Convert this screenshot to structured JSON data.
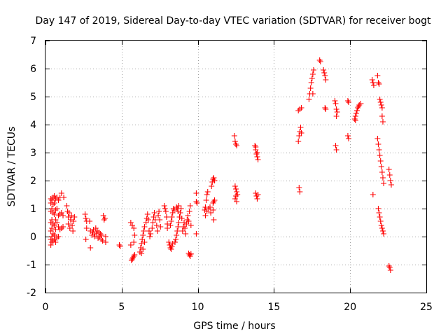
{
  "chart_data": {
    "type": "scatter",
    "title": "Day 147 of 2019, Sidereal Day-to-day VTEC variation (SDTVAR) for receiver bogt",
    "xlabel": "GPS time / hours",
    "ylabel": "SDTVAR / TECUs",
    "xlim": [
      0,
      25
    ],
    "ylim": [
      -2,
      7
    ],
    "xticks": [
      0,
      5,
      10,
      15,
      20,
      25
    ],
    "yticks": [
      -2,
      -1,
      0,
      1,
      2,
      3,
      4,
      5,
      6,
      7
    ],
    "xtick_labels": [
      "0",
      "5",
      "10",
      "15",
      "20",
      "25"
    ],
    "ytick_labels": [
      "-2",
      "-1",
      "0",
      "1",
      "2",
      "3",
      "4",
      "5",
      "6",
      "7"
    ],
    "grid": true,
    "marker": "plus",
    "color": "#ff0000",
    "series": [
      {
        "name": "SDTVAR",
        "points": [
          [
            0.35,
            -0.3
          ],
          [
            0.35,
            -0.1
          ],
          [
            0.35,
            0.2
          ],
          [
            0.35,
            0.5
          ],
          [
            0.35,
            0.9
          ],
          [
            0.35,
            1.2
          ],
          [
            0.35,
            1.35
          ],
          [
            0.42,
            1.3
          ],
          [
            0.42,
            1.0
          ],
          [
            0.42,
            0.6
          ],
          [
            0.42,
            0.3
          ],
          [
            0.42,
            0.0
          ],
          [
            0.42,
            -0.2
          ],
          [
            0.5,
            -0.15
          ],
          [
            0.5,
            0.1
          ],
          [
            0.5,
            0.45
          ],
          [
            0.5,
            0.85
          ],
          [
            0.5,
            1.15
          ],
          [
            0.5,
            1.4
          ],
          [
            0.58,
            1.45
          ],
          [
            0.58,
            1.2
          ],
          [
            0.58,
            0.8
          ],
          [
            0.58,
            0.4
          ],
          [
            0.58,
            0.05
          ],
          [
            0.58,
            -0.1
          ],
          [
            0.66,
            -0.2
          ],
          [
            0.66,
            0.25
          ],
          [
            0.66,
            0.6
          ],
          [
            0.66,
            0.95
          ],
          [
            0.66,
            1.35
          ],
          [
            0.75,
            1.4
          ],
          [
            0.75,
            1.0
          ],
          [
            0.75,
            0.5
          ],
          [
            0.75,
            0.0
          ],
          [
            0.75,
            -0.05
          ],
          [
            0.85,
            0.0
          ],
          [
            0.85,
            0.35
          ],
          [
            0.85,
            0.75
          ],
          [
            0.85,
            1.3
          ],
          [
            0.95,
            0.8
          ],
          [
            0.95,
            0.25
          ],
          [
            0.95,
            1.4
          ],
          [
            1.05,
            0.85
          ],
          [
            1.05,
            1.55
          ],
          [
            1.05,
            0.3
          ],
          [
            1.15,
            0.75
          ],
          [
            1.15,
            0.35
          ],
          [
            1.2,
            1.4
          ],
          [
            1.4,
            1.1
          ],
          [
            1.45,
            0.9
          ],
          [
            1.5,
            0.7
          ],
          [
            1.5,
            0.45
          ],
          [
            1.55,
            0.85
          ],
          [
            1.6,
            0.3
          ],
          [
            1.65,
            0.6
          ],
          [
            1.7,
            0.75
          ],
          [
            1.75,
            0.4
          ],
          [
            1.8,
            0.2
          ],
          [
            1.85,
            0.55
          ],
          [
            1.9,
            0.7
          ],
          [
            2.6,
            0.8
          ],
          [
            2.65,
            0.65
          ],
          [
            2.7,
            0.55
          ],
          [
            2.7,
            0.3
          ],
          [
            2.65,
            -0.1
          ],
          [
            2.9,
            0.55
          ],
          [
            2.95,
            0.2
          ],
          [
            2.95,
            -0.4
          ],
          [
            3.05,
            0.05
          ],
          [
            3.1,
            0.15
          ],
          [
            3.15,
            0.25
          ],
          [
            3.2,
            0.0
          ],
          [
            3.25,
            0.1
          ],
          [
            3.3,
            0.3
          ],
          [
            3.35,
            0.1
          ],
          [
            3.4,
            0.2
          ],
          [
            3.45,
            -0.05
          ],
          [
            3.5,
            0.15
          ],
          [
            3.55,
            0.0
          ],
          [
            3.6,
            0.1
          ],
          [
            3.65,
            -0.1
          ],
          [
            3.7,
            0.05
          ],
          [
            3.75,
            -0.15
          ],
          [
            3.8,
            0.75
          ],
          [
            3.85,
            0.6
          ],
          [
            3.9,
            0.65
          ],
          [
            3.95,
            0.0
          ],
          [
            3.95,
            -0.2
          ],
          [
            4.85,
            -0.3
          ],
          [
            4.9,
            -0.35
          ],
          [
            5.6,
            -0.3
          ],
          [
            5.65,
            -0.85
          ],
          [
            5.7,
            -0.8
          ],
          [
            5.75,
            -0.75
          ],
          [
            5.8,
            -0.7
          ],
          [
            5.85,
            -0.65
          ],
          [
            5.6,
            0.5
          ],
          [
            5.7,
            0.4
          ],
          [
            5.8,
            0.3
          ],
          [
            5.8,
            -0.2
          ],
          [
            5.85,
            0.05
          ],
          [
            6.2,
            -0.55
          ],
          [
            6.25,
            -0.4
          ],
          [
            6.3,
            -0.25
          ],
          [
            6.35,
            -0.1
          ],
          [
            6.4,
            0.05
          ],
          [
            6.45,
            0.2
          ],
          [
            6.5,
            0.35
          ],
          [
            6.3,
            -0.6
          ],
          [
            6.4,
            -0.45
          ],
          [
            6.5,
            -0.2
          ],
          [
            6.6,
            0.5
          ],
          [
            6.65,
            0.65
          ],
          [
            6.7,
            0.8
          ],
          [
            6.75,
            0.6
          ],
          [
            6.8,
            0.2
          ],
          [
            6.85,
            0.0
          ],
          [
            6.9,
            0.1
          ],
          [
            7.0,
            0.3
          ],
          [
            7.05,
            0.5
          ],
          [
            7.1,
            0.7
          ],
          [
            7.15,
            0.85
          ],
          [
            7.2,
            0.6
          ],
          [
            7.3,
            0.4
          ],
          [
            7.35,
            0.2
          ],
          [
            7.4,
            0.75
          ],
          [
            7.45,
            0.9
          ],
          [
            7.5,
            0.6
          ],
          [
            7.55,
            0.35
          ],
          [
            7.8,
            1.1
          ],
          [
            7.85,
            1.0
          ],
          [
            7.9,
            0.9
          ],
          [
            7.95,
            0.7
          ],
          [
            8.0,
            0.45
          ],
          [
            8.0,
            0.3
          ],
          [
            8.1,
            -0.2
          ],
          [
            8.15,
            -0.3
          ],
          [
            8.2,
            -0.4
          ],
          [
            8.25,
            -0.45
          ],
          [
            8.3,
            -0.35
          ],
          [
            8.35,
            -0.25
          ],
          [
            8.2,
            0.4
          ],
          [
            8.25,
            0.55
          ],
          [
            8.3,
            0.7
          ],
          [
            8.35,
            0.85
          ],
          [
            8.4,
            1.0
          ],
          [
            8.45,
            0.95
          ],
          [
            8.5,
            -0.2
          ],
          [
            8.55,
            -0.1
          ],
          [
            8.6,
            0.05
          ],
          [
            8.65,
            0.2
          ],
          [
            8.7,
            0.35
          ],
          [
            8.75,
            0.5
          ],
          [
            8.6,
            1.05
          ],
          [
            8.65,
            1.0
          ],
          [
            8.7,
            0.9
          ],
          [
            8.75,
            1.1
          ],
          [
            8.8,
            0.7
          ],
          [
            8.85,
            0.85
          ],
          [
            8.9,
            1.0
          ],
          [
            8.95,
            0.65
          ],
          [
            9.0,
            0.2
          ],
          [
            9.05,
            0.35
          ],
          [
            9.1,
            0.5
          ],
          [
            9.15,
            0.3
          ],
          [
            9.2,
            0.1
          ],
          [
            9.25,
            0.45
          ],
          [
            9.3,
            0.6
          ],
          [
            9.35,
            0.75
          ],
          [
            9.4,
            0.55
          ],
          [
            9.45,
            0.9
          ],
          [
            9.5,
            1.1
          ],
          [
            9.55,
            0.4
          ],
          [
            9.4,
            -0.6
          ],
          [
            9.45,
            -0.65
          ],
          [
            9.5,
            -0.7
          ],
          [
            9.55,
            -0.62
          ],
          [
            9.9,
            1.55
          ],
          [
            9.9,
            1.25
          ],
          [
            9.9,
            0.1
          ],
          [
            9.95,
            1.2
          ],
          [
            10.45,
            0.95
          ],
          [
            10.5,
            1.05
          ],
          [
            10.55,
            1.3
          ],
          [
            10.6,
            1.5
          ],
          [
            10.65,
            1.6
          ],
          [
            10.5,
            0.75
          ],
          [
            10.6,
            0.9
          ],
          [
            10.7,
            1.0
          ],
          [
            10.8,
            1.05
          ],
          [
            10.85,
            0.85
          ],
          [
            10.9,
            1.8
          ],
          [
            10.95,
            1.95
          ],
          [
            11.0,
            2.05
          ],
          [
            11.05,
            2.1
          ],
          [
            11.1,
            2.0
          ],
          [
            11.0,
            1.2
          ],
          [
            11.05,
            1.25
          ],
          [
            11.1,
            1.3
          ],
          [
            11.0,
            0.95
          ],
          [
            11.05,
            0.6
          ],
          [
            12.4,
            3.6
          ],
          [
            12.45,
            3.4
          ],
          [
            12.5,
            3.3
          ],
          [
            12.55,
            3.25
          ],
          [
            12.45,
            1.8
          ],
          [
            12.5,
            1.7
          ],
          [
            12.55,
            1.6
          ],
          [
            12.5,
            1.45
          ],
          [
            12.45,
            1.35
          ],
          [
            12.55,
            1.25
          ],
          [
            12.6,
            1.5
          ],
          [
            13.75,
            3.25
          ],
          [
            13.8,
            3.1
          ],
          [
            13.85,
            2.95
          ],
          [
            13.9,
            2.85
          ],
          [
            13.95,
            2.75
          ],
          [
            13.8,
            3.2
          ],
          [
            13.9,
            3.0
          ],
          [
            13.8,
            1.55
          ],
          [
            13.85,
            1.45
          ],
          [
            13.9,
            1.35
          ],
          [
            13.95,
            1.5
          ],
          [
            16.6,
            3.4
          ],
          [
            16.65,
            3.6
          ],
          [
            16.7,
            3.75
          ],
          [
            16.75,
            3.9
          ],
          [
            16.8,
            3.7
          ],
          [
            16.6,
            4.5
          ],
          [
            16.7,
            4.55
          ],
          [
            16.8,
            4.6
          ],
          [
            16.65,
            1.75
          ],
          [
            16.7,
            1.6
          ],
          [
            17.3,
            4.9
          ],
          [
            17.35,
            5.1
          ],
          [
            17.4,
            5.3
          ],
          [
            17.45,
            5.5
          ],
          [
            17.5,
            5.65
          ],
          [
            17.55,
            5.8
          ],
          [
            17.6,
            5.95
          ],
          [
            17.55,
            5.1
          ],
          [
            18.0,
            6.3
          ],
          [
            18.05,
            6.25
          ],
          [
            18.25,
            5.95
          ],
          [
            18.3,
            5.85
          ],
          [
            18.35,
            5.75
          ],
          [
            18.4,
            5.6
          ],
          [
            18.35,
            4.6
          ],
          [
            18.4,
            4.55
          ],
          [
            19.0,
            4.85
          ],
          [
            19.05,
            4.75
          ],
          [
            19.1,
            4.55
          ],
          [
            19.1,
            4.3
          ],
          [
            19.15,
            4.45
          ],
          [
            19.05,
            3.25
          ],
          [
            19.1,
            3.1
          ],
          [
            19.85,
            4.85
          ],
          [
            19.9,
            4.8
          ],
          [
            19.85,
            3.6
          ],
          [
            19.9,
            3.5
          ],
          [
            20.3,
            4.2
          ],
          [
            20.35,
            4.3
          ],
          [
            20.4,
            4.4
          ],
          [
            20.45,
            4.5
          ],
          [
            20.5,
            4.6
          ],
          [
            20.55,
            4.65
          ],
          [
            20.6,
            4.7
          ],
          [
            20.7,
            4.75
          ],
          [
            20.35,
            4.15
          ],
          [
            21.45,
            5.6
          ],
          [
            21.5,
            5.5
          ],
          [
            21.55,
            5.4
          ],
          [
            21.5,
            1.5
          ],
          [
            21.8,
            5.75
          ],
          [
            21.85,
            5.5
          ],
          [
            21.9,
            5.45
          ],
          [
            21.95,
            4.9
          ],
          [
            22.0,
            4.8
          ],
          [
            22.05,
            4.7
          ],
          [
            22.1,
            4.6
          ],
          [
            22.1,
            4.3
          ],
          [
            22.15,
            4.1
          ],
          [
            21.8,
            3.5
          ],
          [
            21.85,
            3.3
          ],
          [
            21.9,
            3.1
          ],
          [
            21.95,
            2.9
          ],
          [
            22.0,
            2.7
          ],
          [
            22.05,
            2.5
          ],
          [
            22.1,
            2.3
          ],
          [
            22.15,
            2.1
          ],
          [
            22.2,
            1.9
          ],
          [
            21.85,
            1.0
          ],
          [
            21.9,
            0.85
          ],
          [
            21.95,
            0.7
          ],
          [
            22.0,
            0.55
          ],
          [
            22.05,
            0.4
          ],
          [
            22.1,
            0.3
          ],
          [
            22.15,
            0.2
          ],
          [
            22.2,
            0.1
          ],
          [
            22.55,
            2.4
          ],
          [
            22.6,
            2.2
          ],
          [
            22.65,
            2.0
          ],
          [
            22.7,
            1.85
          ],
          [
            22.55,
            -1.05
          ],
          [
            22.6,
            -1.1
          ],
          [
            22.65,
            -1.2
          ]
        ]
      }
    ]
  }
}
